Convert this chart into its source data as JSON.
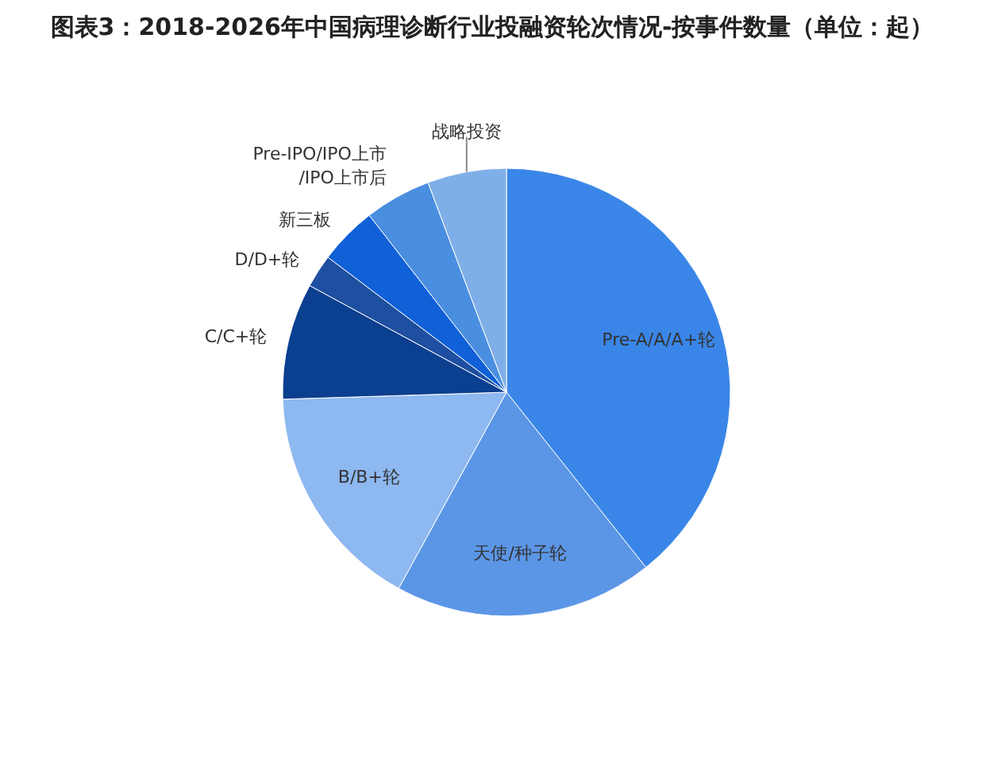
{
  "chart_data": {
    "type": "pie",
    "title": "图表3：2018-2026年中国病理诊断行业投融资轮次情况-按事件数量（单位：起）",
    "categories": [
      "Pre-A/A/A+轮",
      "天使/种子轮",
      "B/B+轮",
      "C/C+轮",
      "D/D+轮",
      "新三板",
      "Pre-IPO/IPO上市/IPO上市后",
      "战略投资"
    ],
    "values": [
      39.3,
      18.7,
      16.5,
      8.4,
      2.4,
      4.2,
      4.8,
      5.7
    ],
    "colors": [
      "#3a86e8",
      "#5b96e6",
      "#8db8f0",
      "#0b3f8f",
      "#1e4fa0",
      "#1060d8",
      "#4a8ee0",
      "#7fafe8"
    ],
    "legend": false
  }
}
